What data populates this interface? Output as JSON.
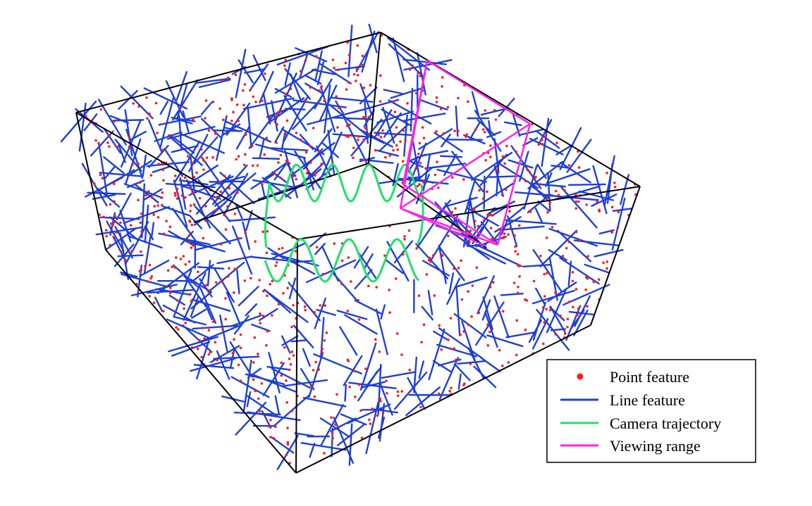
{
  "colors": {
    "point": "#ff1a1a",
    "line": "#1f3fd6",
    "trajectory": "#22e06a",
    "viewing": "#ff22e6",
    "edge": "#000000"
  },
  "legend": {
    "entries": [
      {
        "label": "Point feature",
        "symbol": "dot",
        "color_key": "point"
      },
      {
        "label": "Line feature",
        "symbol": "line",
        "color_key": "line"
      },
      {
        "label": "Camera trajectory",
        "symbol": "line",
        "color_key": "trajectory"
      },
      {
        "label": "Viewing range",
        "symbol": "line",
        "color_key": "viewing"
      }
    ]
  }
}
